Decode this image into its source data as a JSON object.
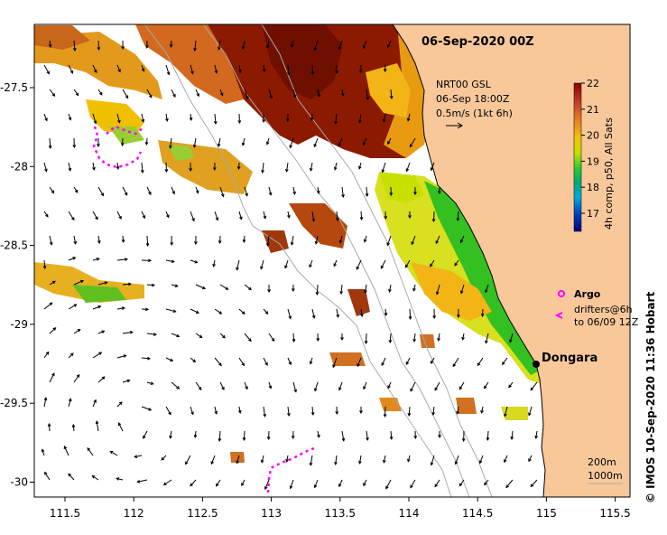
{
  "title": "06-Sep-2020 00Z",
  "current_legend": {
    "line1": "NRT00 GSL",
    "line2": "06-Sep 18:00Z",
    "line3": "0.5m/s (1kt 6h)"
  },
  "colorbar": {
    "label": "4h comp, p50, All Sats",
    "ticks": [
      "22",
      "21",
      "20",
      "19",
      "18",
      "17"
    ],
    "colors": [
      "#8b0000",
      "#b22200",
      "#d2691e",
      "#e69500",
      "#f2c200",
      "#e8e000",
      "#b8e000",
      "#5fd000",
      "#00b000",
      "#00a0a0",
      "#0080d0",
      "#0040b0",
      "#000080"
    ]
  },
  "place": {
    "name": "Dongara"
  },
  "argo_legend": {
    "argo_label": "Argo",
    "drifters_line1": "drifters@6h",
    "drifters_line2": "to 06/09 12Z"
  },
  "depth_legend": {
    "line1": "200m",
    "line2": "1000m"
  },
  "axes": {
    "x_ticks": [
      "111.5",
      "112",
      "112.5",
      "113",
      "113.5",
      "114",
      "114.5",
      "115",
      "115.5"
    ],
    "y_ticks": [
      "-27.5",
      "-28",
      "-28.5",
      "-29",
      "-29.5",
      "-30"
    ]
  },
  "credit": "© IMOS 10-Sep-2020 11:36 Hobart",
  "colors": {
    "land": "#f8c89a",
    "drifter": "#ff00ff",
    "isobath": "#aaaaaa"
  }
}
